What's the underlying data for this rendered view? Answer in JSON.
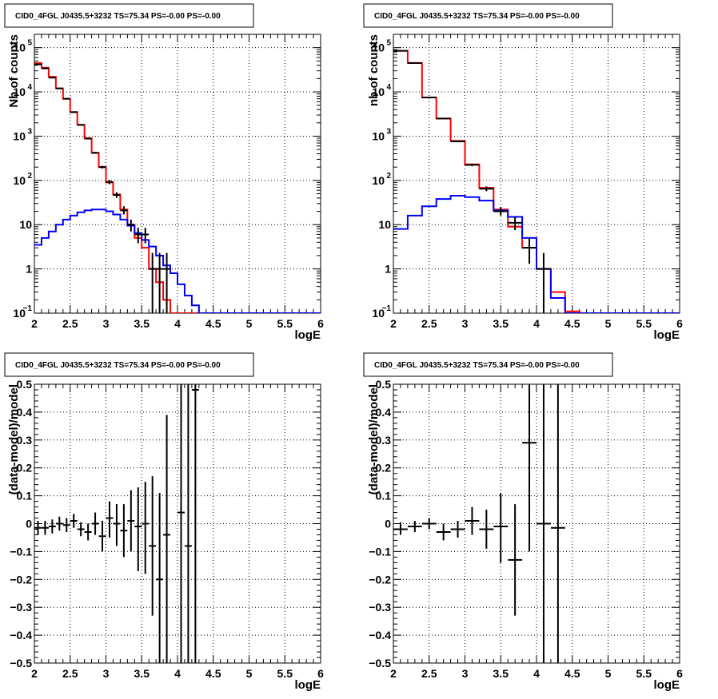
{
  "chart_data": [
    {
      "type": "histogram",
      "title": "CID0_4FGL J0435.5+3232 TS=75.34 PS=-0.00 PS=-0.00",
      "xlabel": "logE",
      "ylabel": "Nb of counts",
      "xlim": [
        2,
        6
      ],
      "ylim": [
        0.1,
        200000
      ],
      "yscale": "log",
      "grid": true,
      "xticks": [
        "2",
        "2.5",
        "3",
        "3.5",
        "4",
        "4.5",
        "5",
        "5.5",
        "6"
      ],
      "yticks": [
        {
          "v": 0.1,
          "base": "10",
          "exp": "−1"
        },
        {
          "v": 1,
          "base": "1",
          "exp": ""
        },
        {
          "v": 10,
          "base": "10",
          "exp": ""
        },
        {
          "v": 100,
          "base": "10",
          "exp": "2"
        },
        {
          "v": 1000,
          "base": "10",
          "exp": "3"
        },
        {
          "v": 10000,
          "base": "10",
          "exp": "4"
        },
        {
          "v": 100000,
          "base": "10",
          "exp": "5"
        }
      ],
      "bin_edges": [
        2.0,
        2.1,
        2.2,
        2.3,
        2.4,
        2.5,
        2.6,
        2.7,
        2.8,
        2.9,
        3.0,
        3.1,
        3.2,
        3.3,
        3.4,
        3.5,
        3.6,
        3.7,
        3.8,
        3.9,
        4.0,
        4.1,
        4.2,
        4.3,
        4.4,
        4.5,
        4.6,
        4.7,
        4.8,
        4.9,
        5.0,
        5.1,
        5.2,
        5.3,
        5.4,
        5.5,
        5.6,
        5.7,
        5.8,
        5.9,
        6.0
      ],
      "series": [
        {
          "color": "#ff0000",
          "values": [
            45000,
            35000,
            22000,
            12000,
            7000,
            3500,
            1800,
            900,
            420,
            200,
            90,
            48,
            22,
            10,
            5,
            3,
            1,
            0.5,
            0.2,
            0.1,
            0.1,
            0.1,
            0.1,
            0.1,
            0.1,
            0.1,
            0.1,
            0.1,
            0.1,
            0.1,
            0.1,
            0.1,
            0.1,
            0.1,
            0.1,
            0.1,
            0.1,
            0.1,
            0.1,
            0.1
          ]
        },
        {
          "color": "#0000ff",
          "values": [
            3.5,
            5,
            7,
            10,
            13,
            16,
            19,
            21,
            22,
            22,
            20,
            17,
            13,
            9.5,
            6.5,
            4.5,
            3.2,
            2,
            1.2,
            0.8,
            0.45,
            0.25,
            0.15,
            0.1,
            0.1,
            0.1,
            0.1,
            0.1,
            0.1,
            0.1,
            0.1,
            0.1,
            0.1,
            0.1,
            0.1,
            0.1,
            0.1,
            0.1,
            0.1,
            0.1
          ]
        }
      ],
      "points": [
        {
          "x": 2.05,
          "y": 42000,
          "lo": 42000,
          "hi": 42000
        },
        {
          "x": 2.15,
          "y": 34000,
          "lo": 34000,
          "hi": 34000
        },
        {
          "x": 2.25,
          "y": 21000,
          "lo": 21000,
          "hi": 21000
        },
        {
          "x": 2.35,
          "y": 12000,
          "lo": 12000,
          "hi": 12000
        },
        {
          "x": 2.45,
          "y": 7000,
          "lo": 7000,
          "hi": 7000
        },
        {
          "x": 2.55,
          "y": 3500,
          "lo": 3500,
          "hi": 3500
        },
        {
          "x": 2.65,
          "y": 1800,
          "lo": 1750,
          "hi": 1850
        },
        {
          "x": 2.75,
          "y": 880,
          "lo": 850,
          "hi": 910
        },
        {
          "x": 2.85,
          "y": 420,
          "lo": 400,
          "hi": 440
        },
        {
          "x": 2.95,
          "y": 200,
          "lo": 186,
          "hi": 214
        },
        {
          "x": 3.05,
          "y": 92,
          "lo": 82,
          "hi": 102
        },
        {
          "x": 3.15,
          "y": 47,
          "lo": 40,
          "hi": 54
        },
        {
          "x": 3.25,
          "y": 21,
          "lo": 17,
          "hi": 26
        },
        {
          "x": 3.35,
          "y": 10,
          "lo": 7,
          "hi": 13
        },
        {
          "x": 3.45,
          "y": 6,
          "lo": 3.8,
          "hi": 8.5
        },
        {
          "x": 3.55,
          "y": 6,
          "lo": 3.8,
          "hi": 8.5
        },
        {
          "x": 3.65,
          "y": 1,
          "lo": 0.1,
          "hi": 2.3
        },
        {
          "x": 3.75,
          "y": 1,
          "lo": 0.1,
          "hi": 2.3
        },
        {
          "x": 3.85,
          "y": 1,
          "lo": 0.1,
          "hi": 2.3
        }
      ]
    },
    {
      "type": "histogram",
      "title": "CID0_4FGL J0435.5+3232 TS=75.34 PS=-0.00 PS=-0.00",
      "xlabel": "logE",
      "ylabel": "nb of counts",
      "xlim": [
        2,
        6
      ],
      "ylim": [
        0.1,
        200000
      ],
      "yscale": "log",
      "grid": true,
      "xticks": [
        "2",
        "2.5",
        "3",
        "3.5",
        "4",
        "4.5",
        "5",
        "5.5",
        "6"
      ],
      "yticks": [
        {
          "v": 0.1,
          "base": "10",
          "exp": "−1"
        },
        {
          "v": 1,
          "base": "1",
          "exp": ""
        },
        {
          "v": 10,
          "base": "10",
          "exp": ""
        },
        {
          "v": 100,
          "base": "10",
          "exp": "2"
        },
        {
          "v": 1000,
          "base": "10",
          "exp": "3"
        },
        {
          "v": 10000,
          "base": "10",
          "exp": "4"
        },
        {
          "v": 100000,
          "base": "10",
          "exp": "5"
        }
      ],
      "bin_edges": [
        2.0,
        2.2,
        2.4,
        2.6,
        2.8,
        3.0,
        3.2,
        3.4,
        3.6,
        3.8,
        4.0,
        4.2,
        4.4,
        4.6,
        4.8,
        5.0,
        5.2,
        5.4,
        5.6,
        5.8,
        6.0
      ],
      "series": [
        {
          "color": "#ff0000",
          "values": [
            85000,
            45000,
            7500,
            2500,
            780,
            230,
            68,
            22,
            9,
            3,
            1,
            0.3,
            0.11,
            0.1,
            0.1,
            0.1,
            0.1,
            0.1,
            0.1,
            0.1
          ]
        },
        {
          "color": "#0000ff",
          "values": [
            8,
            16,
            26,
            38,
            45,
            42,
            35,
            21,
            15,
            5,
            1,
            0.22,
            0.1,
            0.1,
            0.1,
            0.1,
            0.1,
            0.1,
            0.1,
            0.1
          ]
        }
      ],
      "points": [
        {
          "x": 2.1,
          "y": 85000,
          "lo": 85000,
          "hi": 85000
        },
        {
          "x": 2.3,
          "y": 45000,
          "lo": 45000,
          "hi": 45000
        },
        {
          "x": 2.5,
          "y": 7500,
          "lo": 7500,
          "hi": 7500
        },
        {
          "x": 2.7,
          "y": 2500,
          "lo": 2450,
          "hi": 2550
        },
        {
          "x": 2.9,
          "y": 760,
          "lo": 735,
          "hi": 785
        },
        {
          "x": 3.1,
          "y": 225,
          "lo": 210,
          "hi": 240
        },
        {
          "x": 3.3,
          "y": 65,
          "lo": 57,
          "hi": 73
        },
        {
          "x": 3.5,
          "y": 20,
          "lo": 16,
          "hi": 25
        },
        {
          "x": 3.7,
          "y": 11,
          "lo": 7.5,
          "hi": 15
        },
        {
          "x": 3.9,
          "y": 3,
          "lo": 1.3,
          "hi": 5
        },
        {
          "x": 4.1,
          "y": 1,
          "lo": 0.1,
          "hi": 2.3
        }
      ]
    },
    {
      "type": "scatter",
      "title": "CID0_4FGL J0435.5+3232 TS=75.34 PS=-0.00 PS=-0.00",
      "xlabel": "logE",
      "ylabel": "(data-model)/model",
      "xlim": [
        2,
        6
      ],
      "ylim": [
        -0.5,
        0.5
      ],
      "grid": true,
      "xticks": [
        "2",
        "2.5",
        "3",
        "3.5",
        "4",
        "4.5",
        "5",
        "5.5",
        "6"
      ],
      "yticks": [
        "−0.5",
        "−0.4",
        "−0.3",
        "−0.2",
        "−0.1",
        "0",
        "0.1",
        "0.2",
        "0.3",
        "0.4",
        "0.5"
      ],
      "points": [
        {
          "x": 2.05,
          "y": -0.015,
          "lo": -0.04,
          "hi": 0.01
        },
        {
          "x": 2.15,
          "y": -0.015,
          "lo": -0.04,
          "hi": 0.01
        },
        {
          "x": 2.25,
          "y": -0.01,
          "lo": -0.035,
          "hi": 0.015
        },
        {
          "x": 2.35,
          "y": 0.0,
          "lo": -0.025,
          "hi": 0.025
        },
        {
          "x": 2.45,
          "y": -0.005,
          "lo": -0.03,
          "hi": 0.02
        },
        {
          "x": 2.55,
          "y": 0.01,
          "lo": -0.015,
          "hi": 0.035
        },
        {
          "x": 2.65,
          "y": -0.02,
          "lo": -0.045,
          "hi": 0.005
        },
        {
          "x": 2.75,
          "y": -0.03,
          "lo": -0.06,
          "hi": 0.0
        },
        {
          "x": 2.85,
          "y": 0.0,
          "lo": -0.04,
          "hi": 0.04
        },
        {
          "x": 2.95,
          "y": -0.045,
          "lo": -0.1,
          "hi": 0.01
        },
        {
          "x": 3.05,
          "y": 0.02,
          "lo": -0.05,
          "hi": 0.08
        },
        {
          "x": 3.15,
          "y": 0.0,
          "lo": -0.08,
          "hi": 0.07
        },
        {
          "x": 3.25,
          "y": -0.025,
          "lo": -0.12,
          "hi": 0.07
        },
        {
          "x": 3.35,
          "y": 0.01,
          "lo": -0.1,
          "hi": 0.12
        },
        {
          "x": 3.45,
          "y": -0.01,
          "lo": -0.17,
          "hi": 0.13
        },
        {
          "x": 3.55,
          "y": 0.0,
          "lo": -0.18,
          "hi": 0.15
        },
        {
          "x": 3.65,
          "y": -0.08,
          "lo": -0.33,
          "hi": 0.17
        },
        {
          "x": 3.75,
          "y": -0.2,
          "lo": -0.5,
          "hi": 0.11
        },
        {
          "x": 3.85,
          "y": -0.04,
          "lo": -0.5,
          "hi": 0.39
        },
        {
          "x": 4.05,
          "y": 0.04,
          "lo": -0.5,
          "hi": 0.5
        },
        {
          "x": 4.15,
          "y": -0.08,
          "lo": -0.5,
          "hi": 0.5
        },
        {
          "x": 4.25,
          "y": 0.48,
          "lo": -0.5,
          "hi": 0.5
        }
      ]
    },
    {
      "type": "scatter",
      "title": "CID0_4FGL J0435.5+3232 TS=75.34 PS=-0.00 PS=-0.00",
      "xlabel": "logE",
      "ylabel": "(data-model)/model",
      "xlim": [
        2,
        6
      ],
      "ylim": [
        -0.5,
        0.5
      ],
      "grid": true,
      "xticks": [
        "2",
        "2.5",
        "3",
        "3.5",
        "4",
        "4.5",
        "5",
        "5.5",
        "6"
      ],
      "yticks": [
        "−0.5",
        "−0.4",
        "−0.3",
        "−0.2",
        "−0.1",
        "0",
        "0.1",
        "0.2",
        "0.3",
        "0.4",
        "0.5"
      ],
      "points": [
        {
          "x": 2.1,
          "y": -0.02,
          "lo": -0.04,
          "hi": 0.005
        },
        {
          "x": 2.3,
          "y": -0.01,
          "lo": -0.03,
          "hi": 0.01
        },
        {
          "x": 2.5,
          "y": 0.0,
          "lo": -0.02,
          "hi": 0.02
        },
        {
          "x": 2.7,
          "y": -0.03,
          "lo": -0.06,
          "hi": 0.0
        },
        {
          "x": 2.9,
          "y": -0.02,
          "lo": -0.05,
          "hi": 0.01
        },
        {
          "x": 3.1,
          "y": 0.01,
          "lo": -0.04,
          "hi": 0.06
        },
        {
          "x": 3.3,
          "y": -0.02,
          "lo": -0.09,
          "hi": 0.05
        },
        {
          "x": 3.5,
          "y": -0.01,
          "lo": -0.14,
          "hi": 0.11
        },
        {
          "x": 3.7,
          "y": -0.13,
          "lo": -0.33,
          "hi": 0.07
        },
        {
          "x": 3.9,
          "y": 0.29,
          "lo": -0.1,
          "hi": 0.5
        },
        {
          "x": 4.1,
          "y": 0.0,
          "lo": -0.5,
          "hi": 0.5
        },
        {
          "x": 4.3,
          "y": -0.015,
          "lo": -0.5,
          "hi": 0.5
        }
      ]
    }
  ]
}
